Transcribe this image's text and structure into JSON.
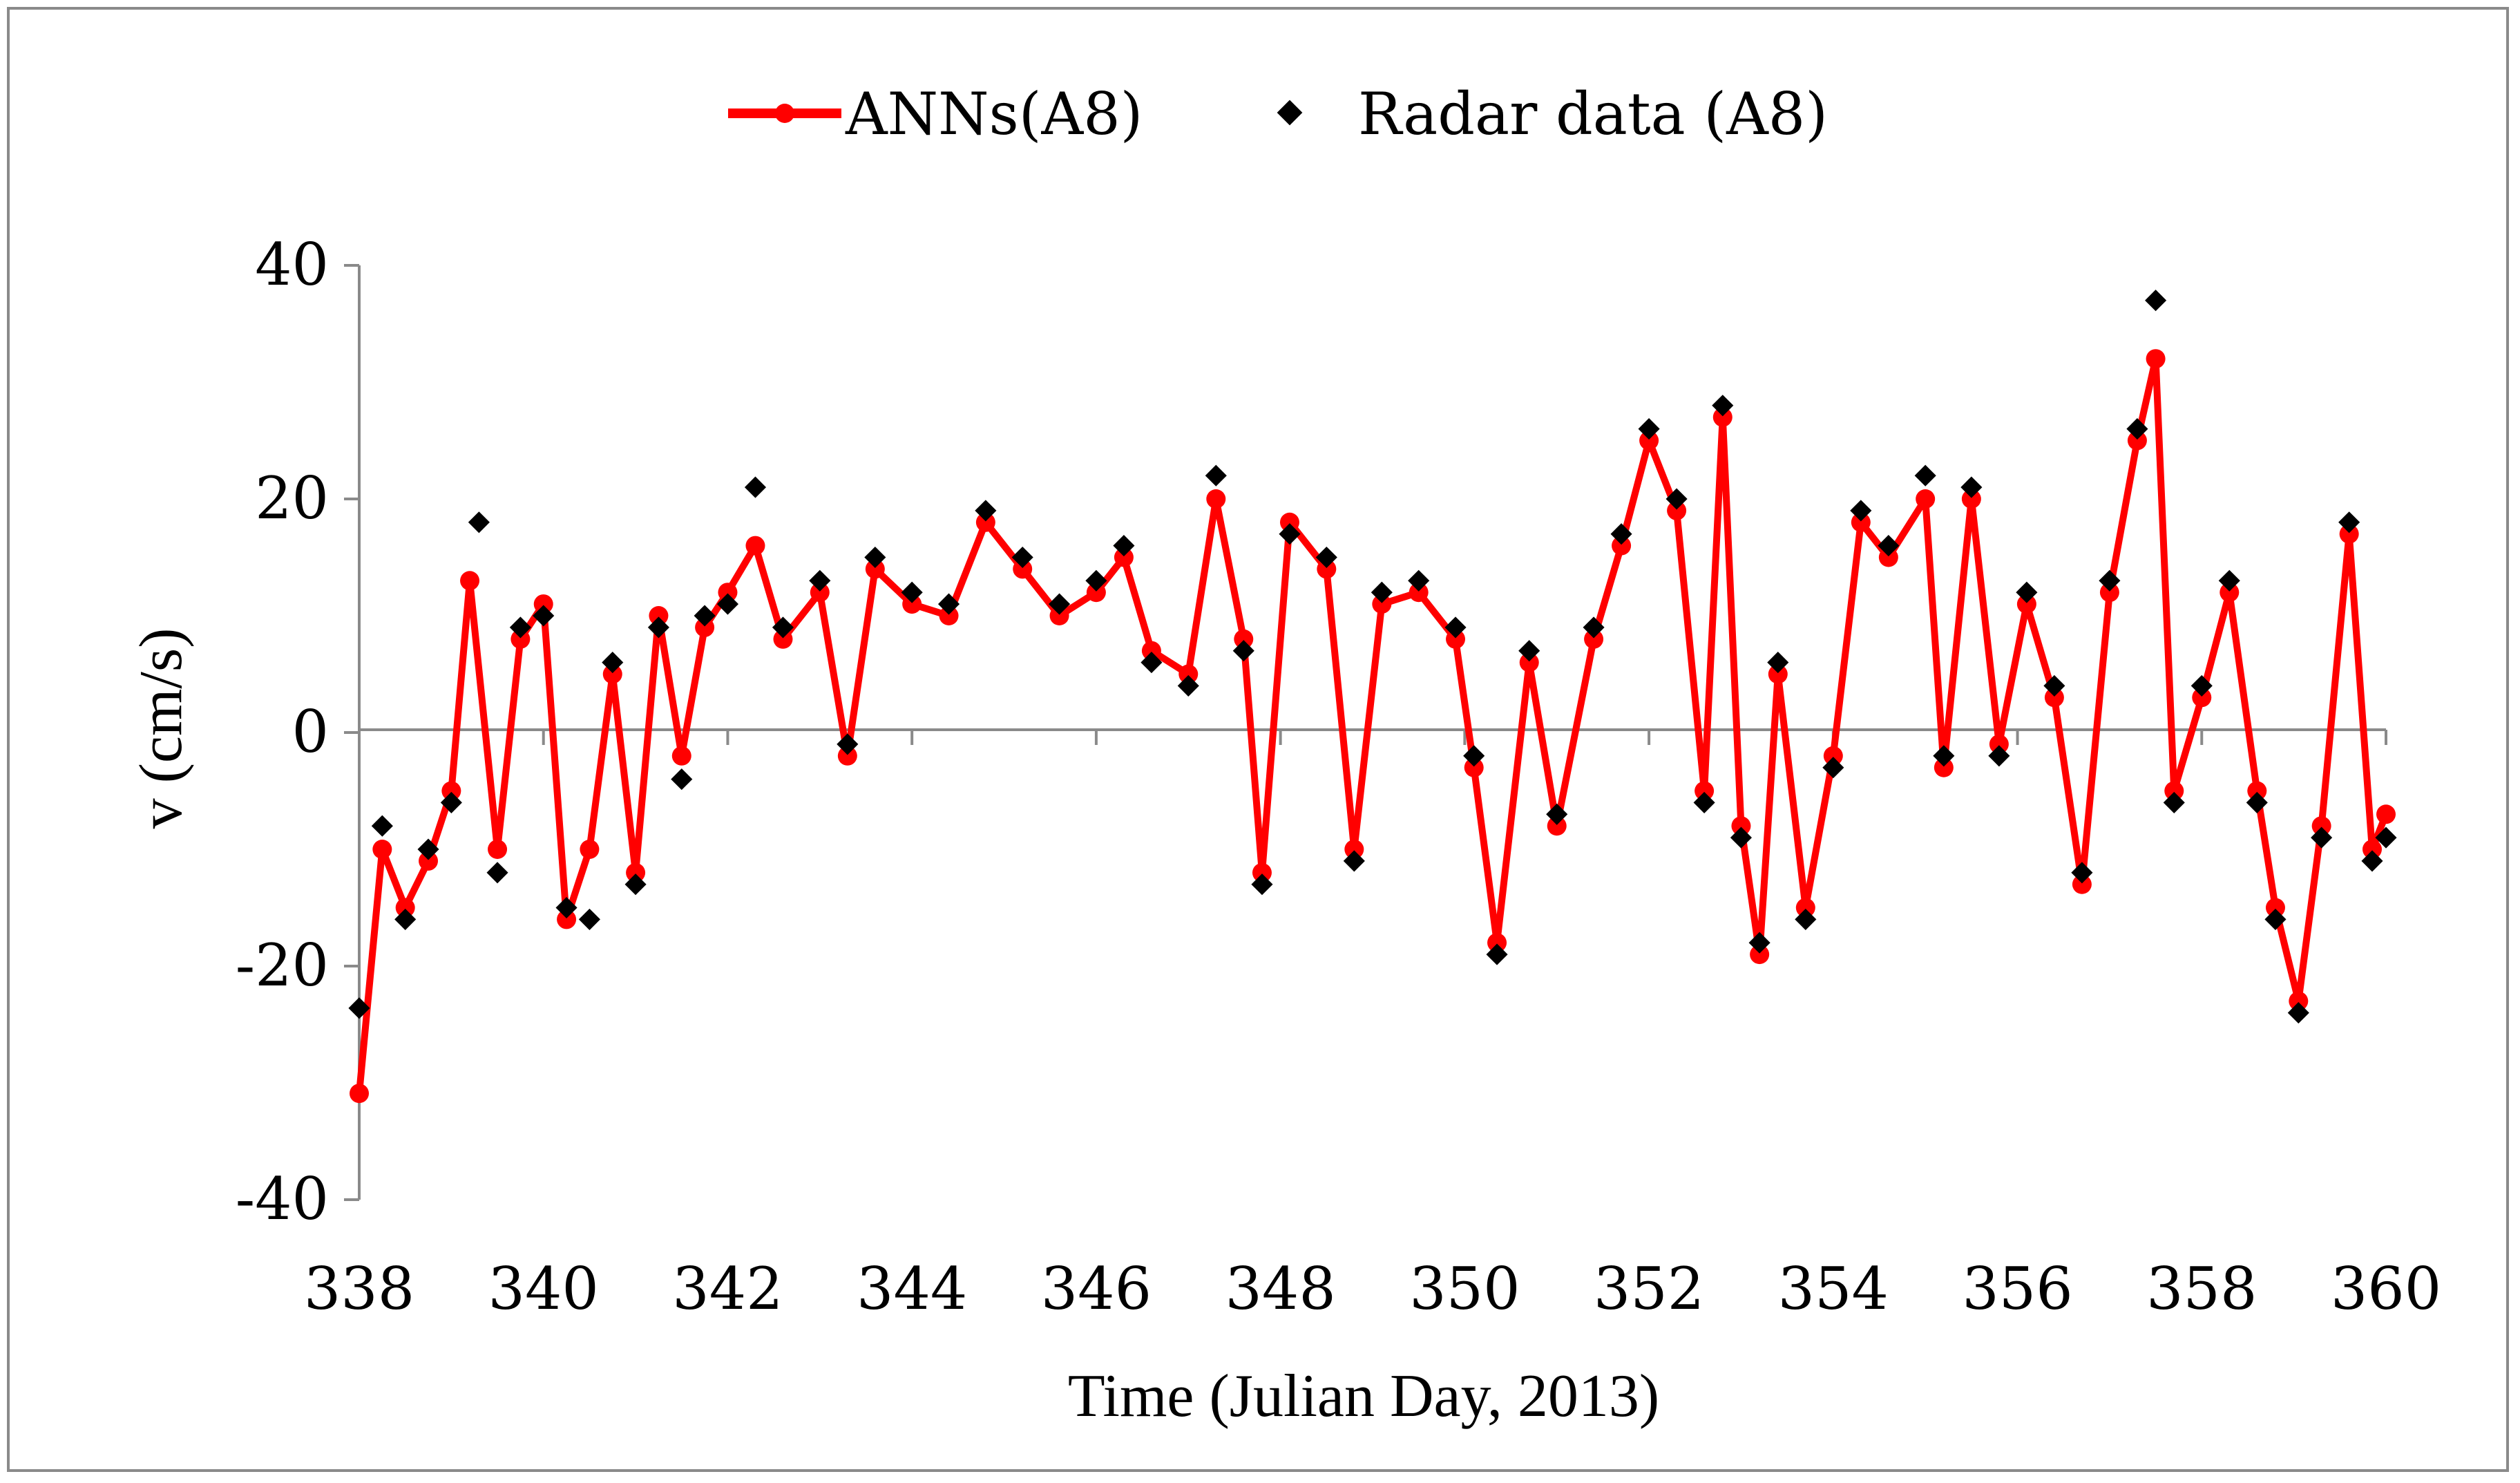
{
  "chart_data": {
    "type": "line",
    "xlabel": "Time (Julian Day, 2013)",
    "ylabel": "v (cm/s)",
    "xlim": [
      338,
      360
    ],
    "ylim": [
      -40,
      40
    ],
    "x_ticks": [
      "338",
      "340",
      "342",
      "344",
      "346",
      "348",
      "350",
      "352",
      "354",
      "356",
      "358",
      "360"
    ],
    "y_ticks": [
      "40",
      "20",
      "0",
      "-20",
      "-40"
    ],
    "legend": "top-center",
    "series": [
      {
        "name": "ANNs(A8)",
        "style": "line-circle",
        "color": "#ff0000",
        "x": [
          338.0,
          338.25,
          338.5,
          338.75,
          339.0,
          339.2,
          339.5,
          339.75,
          340.0,
          340.25,
          340.5,
          340.75,
          341.0,
          341.25,
          341.5,
          341.75,
          342.0,
          342.3,
          342.6,
          343.0,
          343.3,
          343.6,
          344.0,
          344.4,
          344.8,
          345.2,
          345.6,
          346.0,
          346.3,
          346.6,
          347.0,
          347.3,
          347.6,
          347.8,
          348.1,
          348.5,
          348.8,
          349.1,
          349.5,
          349.9,
          350.1,
          350.35,
          350.7,
          351.0,
          351.4,
          351.7,
          352.0,
          352.3,
          352.6,
          352.8,
          353.0,
          353.2,
          353.4,
          353.7,
          354.0,
          354.3,
          354.6,
          355.0,
          355.2,
          355.5,
          355.8,
          356.1,
          356.4,
          356.7,
          357.0,
          357.3,
          357.5,
          357.7,
          358.0,
          358.3,
          358.6,
          358.8,
          359.05,
          359.3,
          359.6,
          359.85,
          360.0
        ],
        "values": [
          -30.9,
          -10,
          -15,
          -11,
          -5,
          13,
          -10,
          8,
          11,
          -16,
          -10,
          5,
          -12,
          10,
          -2,
          9,
          12,
          16,
          8,
          12,
          -2,
          14,
          11,
          10,
          18,
          14,
          10,
          12,
          15,
          7,
          5,
          20,
          8,
          -12,
          18,
          14,
          -10,
          11,
          12,
          8,
          -3,
          -18,
          6,
          -8,
          8,
          16,
          25,
          19,
          -5,
          27,
          -8,
          -19,
          5,
          -15,
          -2,
          18,
          15,
          20,
          -3,
          20,
          -1,
          11,
          3,
          -13,
          12,
          25,
          32,
          -5,
          3,
          12,
          -5,
          -15,
          -23,
          -8,
          17,
          -10,
          -7
        ]
      },
      {
        "name": "Radar data (A8)",
        "style": "diamond-marker",
        "color": "#000000",
        "x": [
          338.0,
          338.25,
          338.5,
          338.75,
          339.0,
          339.3,
          339.5,
          339.75,
          340.0,
          340.25,
          340.5,
          340.75,
          341.0,
          341.25,
          341.5,
          341.75,
          342.0,
          342.3,
          342.6,
          343.0,
          343.3,
          343.6,
          344.0,
          344.4,
          344.8,
          345.2,
          345.6,
          346.0,
          346.3,
          346.6,
          347.0,
          347.3,
          347.6,
          347.8,
          348.1,
          348.5,
          348.8,
          349.1,
          349.5,
          349.9,
          350.1,
          350.35,
          350.7,
          351.0,
          351.4,
          351.7,
          352.0,
          352.3,
          352.6,
          352.8,
          353.0,
          353.2,
          353.4,
          353.7,
          354.0,
          354.3,
          354.6,
          355.0,
          355.2,
          355.5,
          355.8,
          356.1,
          356.4,
          356.7,
          357.0,
          357.3,
          357.5,
          357.7,
          358.0,
          358.3,
          358.6,
          358.8,
          359.05,
          359.3,
          359.6,
          359.85,
          360.0
        ],
        "values": [
          -23.6,
          -8,
          -16,
          -10,
          -6,
          18,
          -12,
          9,
          10,
          -15,
          -16,
          6,
          -13,
          9,
          -4,
          10,
          11,
          21,
          9,
          13,
          -1,
          15,
          12,
          11,
          19,
          15,
          11,
          13,
          16,
          6,
          4,
          22,
          7,
          -13,
          17,
          15,
          -11,
          12,
          13,
          9,
          -2,
          -19,
          7,
          -7,
          9,
          17,
          26,
          20,
          -6,
          28,
          -9,
          -18,
          6,
          -16,
          -3,
          19,
          16,
          22,
          -2,
          21,
          -2,
          12,
          4,
          -12,
          13,
          26,
          37,
          -6,
          4,
          13,
          -6,
          -16,
          -24,
          -9,
          18,
          -11,
          -9
        ]
      }
    ]
  }
}
